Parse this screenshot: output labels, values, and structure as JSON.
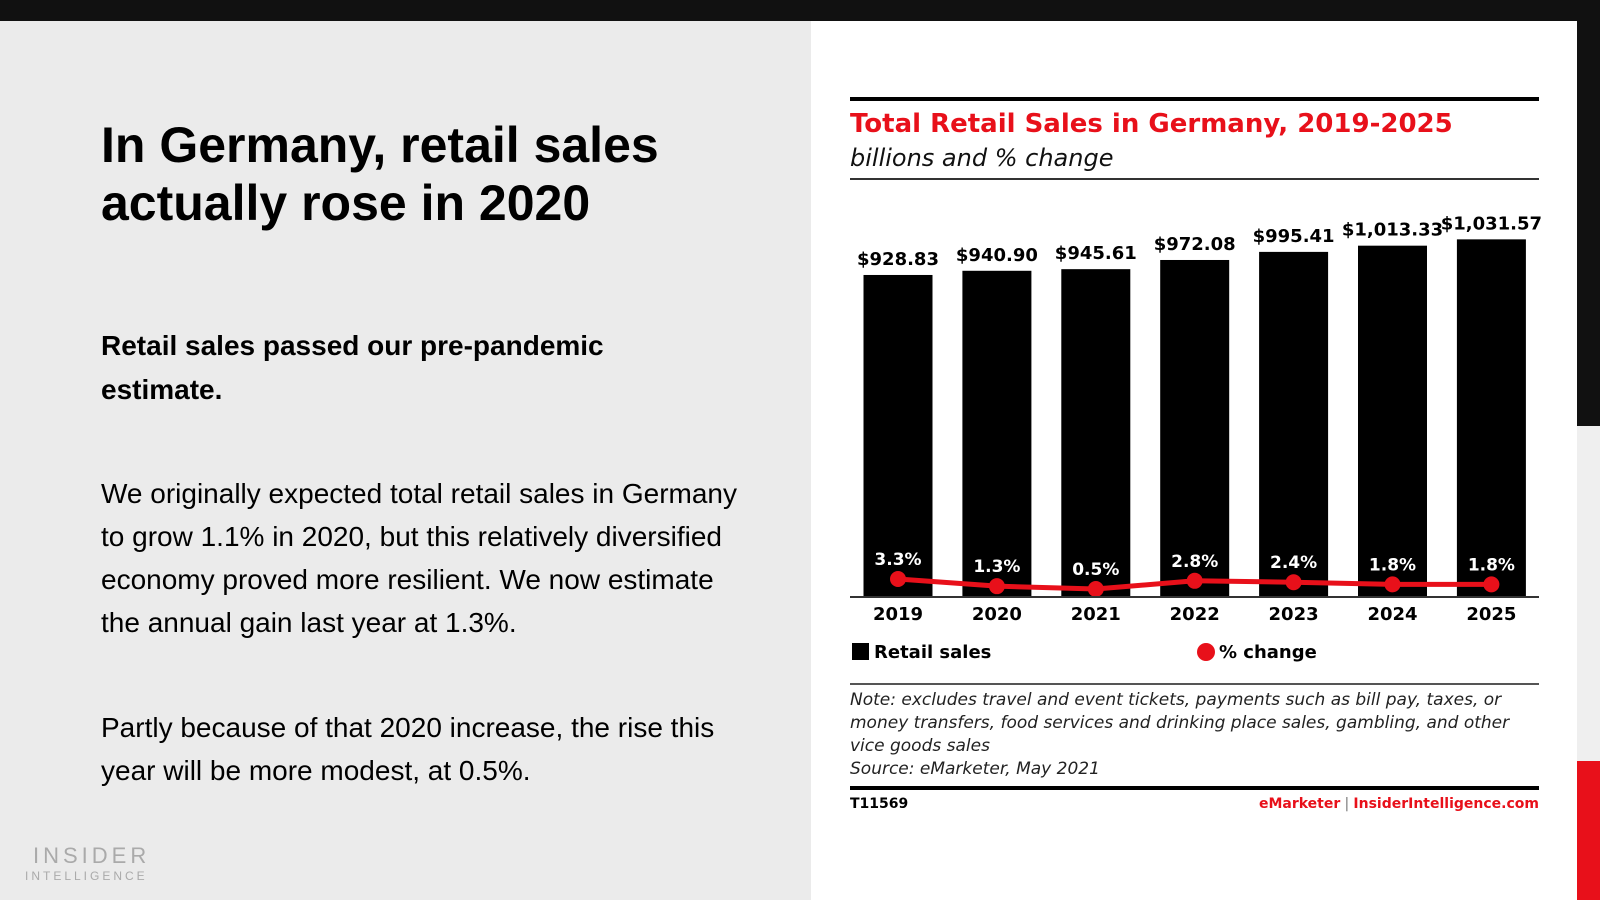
{
  "slide": {
    "title": "In Germany, retail sales actually rose in 2020",
    "subtitle": "Retail sales passed our pre-pandemic estimate.",
    "para1": "We originally expected total retail sales in Germany to grow 1.1% in 2020, but this relatively diversified economy proved more resilient. We now estimate the annual gain last year at 1.3%.",
    "para2": "Partly because of that 2020 increase, the rise this year will be more modest, at 0.5%.",
    "logo": {
      "line1": "INSIDER",
      "line2": "INTELLIGENCE"
    }
  },
  "colors": {
    "accent": "#e8101a",
    "bar": "#000000",
    "line": "#e8101a"
  },
  "chart_data": {
    "type": "bar",
    "title": "Total Retail Sales in Germany, 2019-2025",
    "subtitle": "billions and % change",
    "categories": [
      "2019",
      "2020",
      "2021",
      "2022",
      "2023",
      "2024",
      "2025"
    ],
    "series": [
      {
        "name": "Retail sales",
        "type": "bar",
        "values": [
          928.83,
          940.9,
          945.61,
          972.08,
          995.41,
          1013.33,
          1031.57
        ],
        "labels": [
          "$928.83",
          "$940.90",
          "$945.61",
          "$972.08",
          "$995.41",
          "$1,013.33",
          "$1,031.57"
        ]
      },
      {
        "name": "% change",
        "type": "line",
        "values": [
          3.3,
          1.3,
          0.5,
          2.8,
          2.4,
          1.8,
          1.8
        ],
        "labels": [
          "3.3%",
          "1.3%",
          "0.5%",
          "2.8%",
          "2.4%",
          "1.8%",
          "1.8%"
        ]
      }
    ],
    "legend": "bottom",
    "grid": false,
    "note": "Note: excludes travel and event tickets, payments such as bill pay, taxes, or money transfers, food services and drinking place sales, gambling, and other vice goods sales",
    "source": "Source: eMarketer, May 2021",
    "id": "T11569",
    "brand1": "eMarketer",
    "brand_sep": "|",
    "brand2": "InsiderIntelligence.com"
  }
}
